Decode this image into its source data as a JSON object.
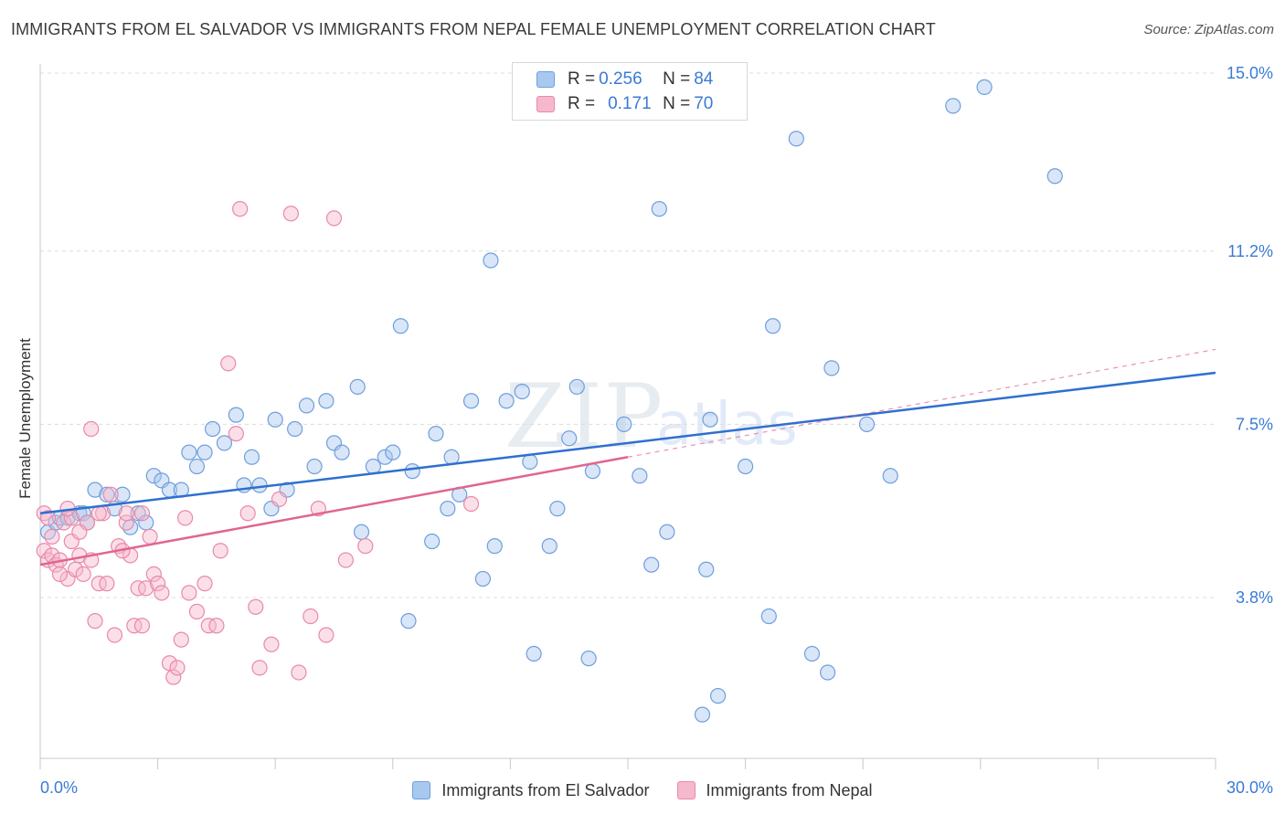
{
  "title": "IMMIGRANTS FROM EL SALVADOR VS IMMIGRANTS FROM NEPAL FEMALE UNEMPLOYMENT CORRELATION CHART",
  "source": "Source: ZipAtlas.com",
  "watermark": {
    "zip": "ZIP",
    "atlas": "atlas"
  },
  "colors": {
    "blue_fill": "#a9c8f0",
    "blue_stroke": "#6f9fdc",
    "blue_line": "#2f6fcf",
    "pink_fill": "#f6b8cc",
    "pink_stroke": "#e98aa8",
    "pink_line": "#e0658f",
    "accent_text": "#3a7bd5",
    "grid": "#dcdcdc"
  },
  "legend": {
    "rows": [
      {
        "r_label": "R =",
        "r_value": "0.256",
        "n_label": "N =",
        "n_value": "84"
      },
      {
        "r_label": "R =",
        "r_value": "0.171",
        "n_label": "N =",
        "n_value": "70"
      }
    ]
  },
  "chart_data": {
    "type": "scatter",
    "title": "IMMIGRANTS FROM EL SALVADOR VS IMMIGRANTS FROM NEPAL FEMALE UNEMPLOYMENT CORRELATION CHART",
    "xlabel": "",
    "ylabel": "Female Unemployment",
    "xlim": [
      0,
      30
    ],
    "ylim": [
      0,
      15.5
    ],
    "x_tick_labels": [
      "0.0%",
      "30.0%"
    ],
    "y_ticks": [
      3.8,
      7.5,
      11.2,
      15.0
    ],
    "y_tick_labels": [
      "3.8%",
      "7.5%",
      "11.2%",
      "15.0%"
    ],
    "grid": true,
    "legend_position": "top-center",
    "series": [
      {
        "name": "Immigrants from El Salvador",
        "color": "blue",
        "r": 0.256,
        "n": 84,
        "trend": {
          "x": [
            0,
            30
          ],
          "y": [
            5.6,
            8.6
          ]
        },
        "points": [
          [
            0.2,
            5.2
          ],
          [
            0.4,
            5.4
          ],
          [
            0.5,
            5.5
          ],
          [
            0.7,
            5.5
          ],
          [
            1.0,
            5.6
          ],
          [
            1.1,
            5.6
          ],
          [
            1.2,
            5.4
          ],
          [
            1.4,
            6.1
          ],
          [
            1.7,
            6.0
          ],
          [
            1.9,
            5.7
          ],
          [
            2.1,
            6.0
          ],
          [
            2.3,
            5.3
          ],
          [
            2.5,
            5.6
          ],
          [
            2.7,
            5.4
          ],
          [
            2.9,
            6.4
          ],
          [
            3.1,
            6.3
          ],
          [
            3.3,
            6.1
          ],
          [
            3.6,
            6.1
          ],
          [
            3.8,
            6.9
          ],
          [
            4.0,
            6.6
          ],
          [
            4.2,
            6.9
          ],
          [
            4.4,
            7.4
          ],
          [
            4.7,
            7.1
          ],
          [
            5.0,
            7.7
          ],
          [
            5.2,
            6.2
          ],
          [
            5.4,
            6.8
          ],
          [
            5.6,
            6.2
          ],
          [
            5.9,
            5.7
          ],
          [
            6.0,
            7.6
          ],
          [
            6.3,
            6.1
          ],
          [
            6.5,
            7.4
          ],
          [
            6.8,
            7.9
          ],
          [
            7.0,
            6.6
          ],
          [
            7.3,
            8.0
          ],
          [
            7.5,
            7.1
          ],
          [
            7.7,
            6.9
          ],
          [
            8.1,
            8.3
          ],
          [
            8.2,
            5.2
          ],
          [
            8.5,
            6.6
          ],
          [
            8.8,
            6.8
          ],
          [
            9.0,
            6.9
          ],
          [
            9.2,
            9.6
          ],
          [
            9.4,
            3.3
          ],
          [
            9.5,
            6.5
          ],
          [
            10.0,
            5.0
          ],
          [
            10.1,
            7.3
          ],
          [
            10.4,
            5.7
          ],
          [
            10.5,
            6.8
          ],
          [
            10.7,
            6.0
          ],
          [
            11.0,
            8.0
          ],
          [
            11.3,
            4.2
          ],
          [
            11.5,
            11.0
          ],
          [
            11.6,
            4.9
          ],
          [
            11.9,
            8.0
          ],
          [
            12.3,
            8.2
          ],
          [
            12.5,
            6.7
          ],
          [
            12.6,
            2.6
          ],
          [
            13.0,
            4.9
          ],
          [
            13.2,
            5.7
          ],
          [
            13.5,
            7.2
          ],
          [
            13.7,
            8.3
          ],
          [
            14.0,
            2.5
          ],
          [
            14.1,
            6.5
          ],
          [
            14.9,
            7.5
          ],
          [
            15.3,
            6.4
          ],
          [
            15.6,
            4.5
          ],
          [
            15.8,
            12.1
          ],
          [
            16.0,
            5.2
          ],
          [
            16.9,
            1.3
          ],
          [
            17.1,
            7.6
          ],
          [
            17.3,
            1.7
          ],
          [
            17.0,
            4.4
          ],
          [
            18.0,
            6.6
          ],
          [
            18.6,
            3.4
          ],
          [
            18.7,
            9.6
          ],
          [
            19.3,
            13.6
          ],
          [
            19.7,
            2.6
          ],
          [
            20.1,
            2.2
          ],
          [
            20.2,
            8.7
          ],
          [
            21.1,
            7.5
          ],
          [
            21.7,
            6.4
          ],
          [
            23.3,
            14.3
          ],
          [
            24.1,
            14.7
          ],
          [
            25.9,
            12.8
          ]
        ]
      },
      {
        "name": "Immigrants from Nepal",
        "color": "pink",
        "r": 0.171,
        "n": 70,
        "trend": {
          "x": [
            0,
            15
          ],
          "y": [
            4.5,
            6.8
          ]
        },
        "trend_dashed": {
          "x": [
            15,
            30
          ],
          "y": [
            6.8,
            9.1
          ]
        },
        "points": [
          [
            0.1,
            5.6
          ],
          [
            0.1,
            4.8
          ],
          [
            0.2,
            4.6
          ],
          [
            0.2,
            5.5
          ],
          [
            0.3,
            4.7
          ],
          [
            0.4,
            4.5
          ],
          [
            0.5,
            4.6
          ],
          [
            0.6,
            5.4
          ],
          [
            0.7,
            4.2
          ],
          [
            0.8,
            5.0
          ],
          [
            0.8,
            5.5
          ],
          [
            0.9,
            4.4
          ],
          [
            1.0,
            4.7
          ],
          [
            1.1,
            4.3
          ],
          [
            1.2,
            5.4
          ],
          [
            1.3,
            4.6
          ],
          [
            1.5,
            4.1
          ],
          [
            1.6,
            5.6
          ],
          [
            1.7,
            4.1
          ],
          [
            1.9,
            3.0
          ],
          [
            2.0,
            4.9
          ],
          [
            2.2,
            5.4
          ],
          [
            2.3,
            4.7
          ],
          [
            2.4,
            3.2
          ],
          [
            2.5,
            4.0
          ],
          [
            2.6,
            3.2
          ],
          [
            2.7,
            4.0
          ],
          [
            2.9,
            4.3
          ],
          [
            3.0,
            4.1
          ],
          [
            3.1,
            3.9
          ],
          [
            3.3,
            2.4
          ],
          [
            3.4,
            2.1
          ],
          [
            3.5,
            2.3
          ],
          [
            3.6,
            2.9
          ],
          [
            3.7,
            5.5
          ],
          [
            3.8,
            3.9
          ],
          [
            4.0,
            3.5
          ],
          [
            4.2,
            4.1
          ],
          [
            4.3,
            3.2
          ],
          [
            4.5,
            3.2
          ],
          [
            4.6,
            4.8
          ],
          [
            4.8,
            8.8
          ],
          [
            5.0,
            7.3
          ],
          [
            5.1,
            12.1
          ],
          [
            5.3,
            5.6
          ],
          [
            5.5,
            3.6
          ],
          [
            5.6,
            2.3
          ],
          [
            5.9,
            2.8
          ],
          [
            6.1,
            5.9
          ],
          [
            6.4,
            12.0
          ],
          [
            6.6,
            2.2
          ],
          [
            6.9,
            3.4
          ],
          [
            7.1,
            5.7
          ],
          [
            7.3,
            3.0
          ],
          [
            7.5,
            11.9
          ],
          [
            7.8,
            4.6
          ],
          [
            8.3,
            4.9
          ],
          [
            11.0,
            5.8
          ],
          [
            1.3,
            7.4
          ],
          [
            1.8,
            6.0
          ],
          [
            2.1,
            4.8
          ],
          [
            0.5,
            4.3
          ],
          [
            1.4,
            3.3
          ],
          [
            2.6,
            5.6
          ],
          [
            0.3,
            5.1
          ],
          [
            1.0,
            5.2
          ],
          [
            0.7,
            5.7
          ],
          [
            2.2,
            5.6
          ],
          [
            1.5,
            5.6
          ],
          [
            2.8,
            5.1
          ]
        ]
      }
    ]
  },
  "bottom_legend": [
    {
      "label": "Immigrants from El Salvador"
    },
    {
      "label": "Immigrants from Nepal"
    }
  ]
}
